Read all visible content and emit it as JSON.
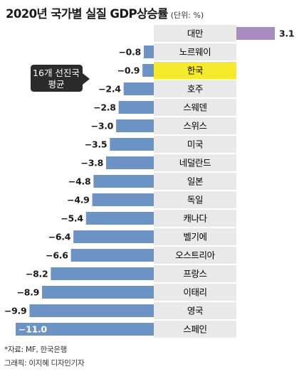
{
  "header": {
    "title": "2020년 국가별 실질 GDP상승률",
    "unit": "(단위: %)"
  },
  "annotation": {
    "text_line1": "16개 선진국",
    "text_line2": "평균",
    "highlight_category": "한국"
  },
  "footer": {
    "source": "*자료: MF, 한국은행",
    "credit": "그래픽: 이지혜 디자인기자"
  },
  "colors": {
    "bar_negative": "#6b93c3",
    "bar_positive": "#a98cbf",
    "label_bg_gray": "#e9e9e9",
    "label_bg_highlight": "#f5ea2a",
    "callout_bg": "#2b2b2b"
  },
  "chart_data": {
    "type": "bar",
    "orientation": "horizontal",
    "categories": [
      "대만",
      "노르웨이",
      "한국",
      "호주",
      "스웨덴",
      "스위스",
      "미국",
      "네덜란드",
      "일본",
      "독일",
      "캐나다",
      "벨기에",
      "오스트리아",
      "프랑스",
      "이태리",
      "영국",
      "스페인"
    ],
    "values": [
      3.1,
      -0.8,
      -0.9,
      -2.4,
      -2.8,
      -3.0,
      -3.5,
      -3.8,
      -4.8,
      -4.9,
      -5.4,
      -6.4,
      -6.6,
      -8.2,
      -8.9,
      -9.9,
      -11.0
    ],
    "value_labels": [
      "3.1",
      "−0.8",
      "−0.9",
      "−2.4",
      "−2.8",
      "−3.0",
      "−3.5",
      "−3.8",
      "−4.8",
      "−4.9",
      "−5.4",
      "−6.4",
      "−6.6",
      "−8.2",
      "−8.9",
      "−9.9",
      "−11.0"
    ],
    "title": "2020년 국가별 실질 GDP상승률",
    "xlabel": "",
    "ylabel": "",
    "xlim": [
      -11.0,
      3.1
    ],
    "grid": false,
    "legend": "none"
  }
}
